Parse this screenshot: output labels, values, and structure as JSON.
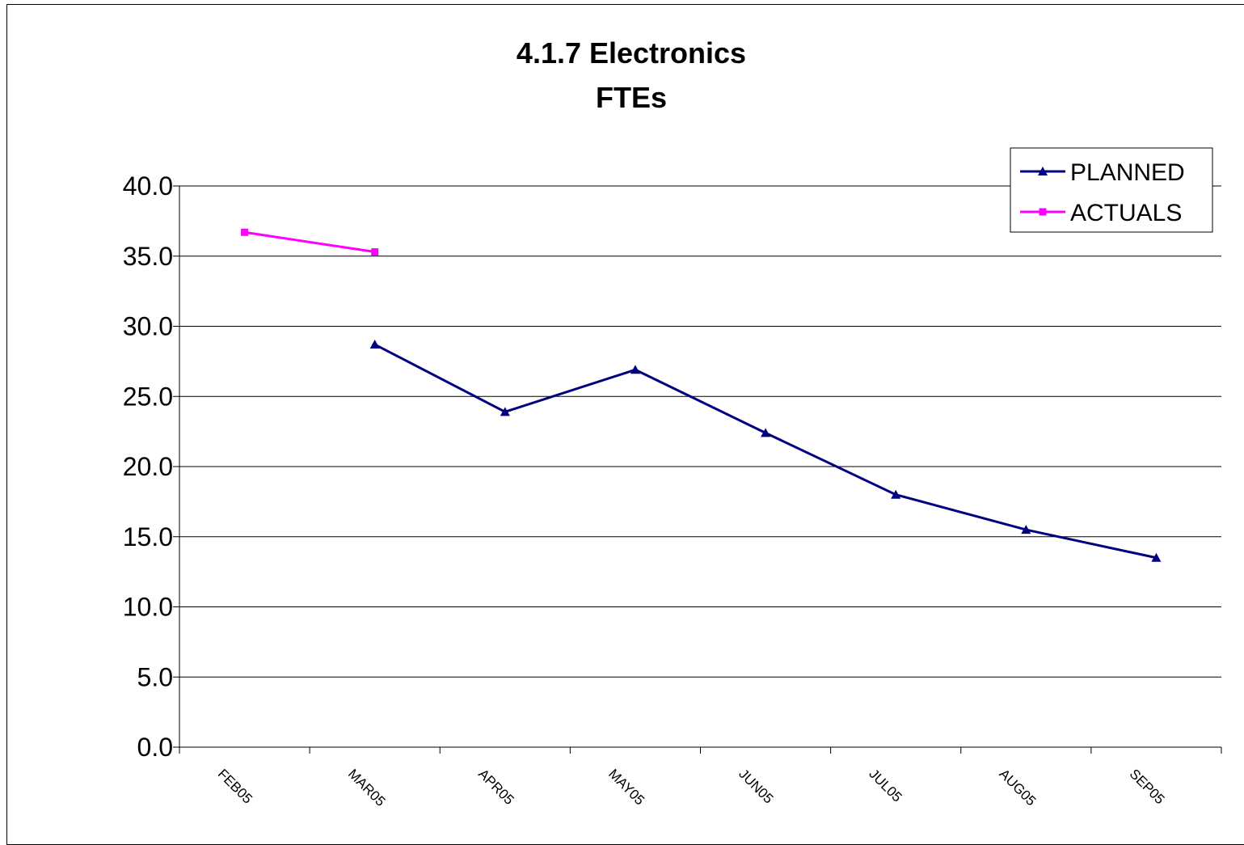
{
  "chart_data": {
    "type": "line",
    "title": [
      "4.1.7 Electronics",
      "FTEs"
    ],
    "categories": [
      "FEB05",
      "MAR05",
      "APR05",
      "MAY05",
      "JUN05",
      "JUL05",
      "AUG05",
      "SEP05"
    ],
    "y_ticks": [
      "0.0",
      "5.0",
      "10.0",
      "15.0",
      "20.0",
      "25.0",
      "30.0",
      "35.0",
      "40.0"
    ],
    "ylim": [
      0,
      40
    ],
    "grid": true,
    "legend_position": "top-right",
    "series": [
      {
        "name": "PLANNED",
        "color": "#000080",
        "marker": "triangle",
        "values": [
          null,
          28.7,
          23.9,
          26.9,
          22.4,
          18.0,
          15.5,
          13.5
        ]
      },
      {
        "name": "ACTUALS",
        "color": "#ff00ff",
        "marker": "square",
        "values": [
          36.7,
          35.3,
          null,
          null,
          null,
          null,
          null,
          null
        ]
      }
    ]
  }
}
